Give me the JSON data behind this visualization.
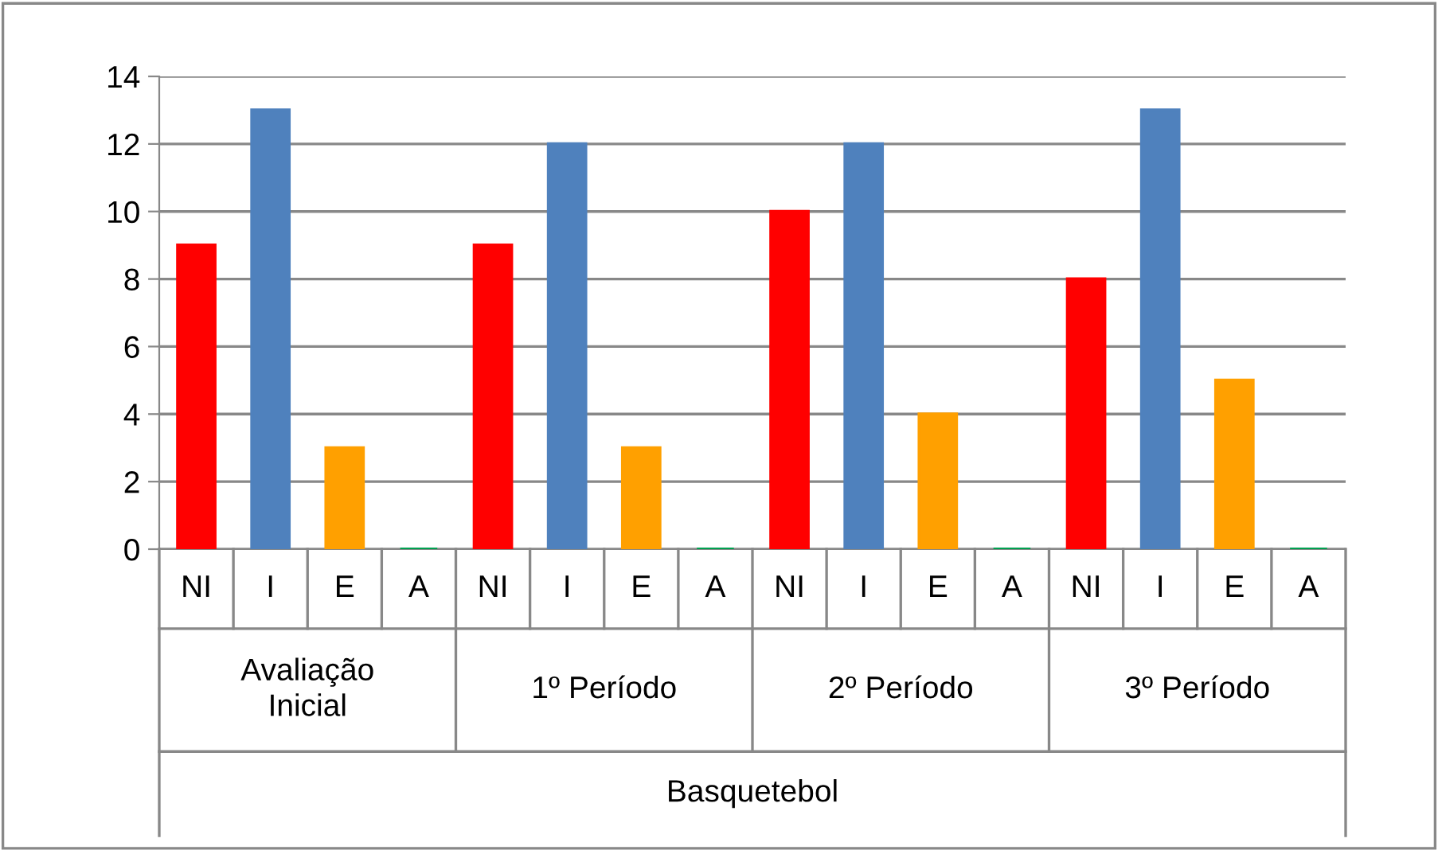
{
  "chart_data": {
    "type": "bar",
    "categories": [
      "NI",
      "I",
      "E",
      "A",
      "NI",
      "I",
      "E",
      "A",
      "NI",
      "I",
      "E",
      "A",
      "NI",
      "I",
      "E",
      "A"
    ],
    "values": [
      9,
      13,
      3,
      0,
      9,
      12,
      3,
      0,
      10,
      12,
      4,
      0,
      8,
      13,
      5,
      0
    ],
    "colors": [
      "#ff0000",
      "#4f81bd",
      "#ffa000",
      "#00a050",
      "#ff0000",
      "#4f81bd",
      "#ffa000",
      "#00a050",
      "#ff0000",
      "#4f81bd",
      "#ffa000",
      "#00a050",
      "#ff0000",
      "#4f81bd",
      "#ffa000",
      "#00a050"
    ],
    "ylim": [
      0,
      14
    ],
    "yticks": [
      0,
      2,
      4,
      6,
      8,
      10,
      12,
      14
    ],
    "grid": "y",
    "annotations": [
      "Avaliação\nInicial",
      "1º Período",
      "2º Período",
      "3º Período",
      "Basquetebol"
    ]
  }
}
